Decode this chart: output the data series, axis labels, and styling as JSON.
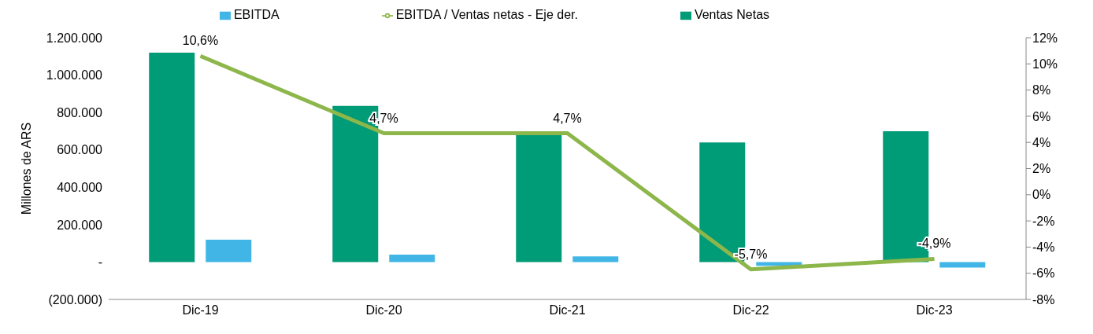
{
  "chart_data": {
    "type": "bar",
    "ylabel": "Millones de ARS",
    "categories": [
      "Dic-19",
      "Dic-20",
      "Dic-21",
      "Dic-22",
      "Dic-23"
    ],
    "series": [
      {
        "name": "Ventas Netas",
        "color": "#009b77",
        "values": [
          1120000,
          835000,
          690000,
          640000,
          700000
        ]
      },
      {
        "name": "EBITDA",
        "color": "#41b6e6",
        "values": [
          120000,
          40000,
          30000,
          -20000,
          -30000
        ]
      },
      {
        "name": "EBITDA / Ventas netas - Eje der.",
        "type": "line",
        "axis": "y2",
        "color": "#8db64b",
        "values": [
          10.6,
          4.7,
          4.7,
          -5.7,
          -4.9
        ],
        "value_labels": [
          "10,6%",
          "4,7%",
          "4,7%",
          "-5,7%",
          "-4,9%"
        ]
      }
    ],
    "ylim": [
      -200000,
      1200000
    ],
    "yticks": [
      {
        "value": -200000,
        "label": "(200.000)"
      },
      {
        "value": 0,
        "label": "-"
      },
      {
        "value": 200000,
        "label": "200.000"
      },
      {
        "value": 400000,
        "label": "400.000"
      },
      {
        "value": 600000,
        "label": "600.000"
      },
      {
        "value": 800000,
        "label": "800.000"
      },
      {
        "value": 1000000,
        "label": "1.000.000"
      },
      {
        "value": 1200000,
        "label": "1.200.000"
      }
    ],
    "y2lim": [
      -8,
      12
    ],
    "y2ticks": [
      {
        "value": -8,
        "label": "-8%"
      },
      {
        "value": -6,
        "label": "-6%"
      },
      {
        "value": -4,
        "label": "-4%"
      },
      {
        "value": -2,
        "label": "-2%"
      },
      {
        "value": 0,
        "label": "0%"
      },
      {
        "value": 2,
        "label": "2%"
      },
      {
        "value": 4,
        "label": "4%"
      },
      {
        "value": 6,
        "label": "6%"
      },
      {
        "value": 8,
        "label": "8%"
      },
      {
        "value": 10,
        "label": "10%"
      },
      {
        "value": 12,
        "label": "12%"
      }
    ],
    "grid": false,
    "legend": "top",
    "marker": "none"
  }
}
